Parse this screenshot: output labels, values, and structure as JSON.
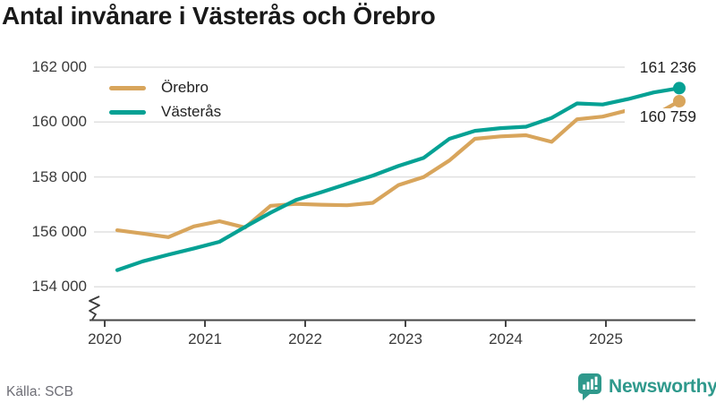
{
  "title": "Antal invånare i Västerås och Örebro",
  "source": "Källa: SCB",
  "brand": {
    "name": "Newsworthy",
    "icon": "bar-chart-speech-bubble",
    "color": "#2f998c"
  },
  "colors": {
    "title": "#191919",
    "tick": "#3a3a3a",
    "axis": "#454545",
    "grid": "#e0e0e0",
    "source": "#6e6e76",
    "brand": "#2f998c",
    "orebro": "#d8a55c",
    "vasteras": "#05a194"
  },
  "chart_data": {
    "type": "line",
    "title": "Antal invånare i Västerås och Örebro",
    "xlabel": "",
    "ylabel": "",
    "x_tick_labels": [
      "2020",
      "2021",
      "2022",
      "2023",
      "2024",
      "2025"
    ],
    "y_ticks": [
      162000,
      160000,
      158000,
      156000,
      154000
    ],
    "y_tick_labels": [
      "162 000",
      "160 000",
      "158 000",
      "156 000",
      "154 000"
    ],
    "ylim": [
      153400,
      162500
    ],
    "axis_break": true,
    "grid": "horizontal",
    "legend_position": "top-left",
    "periods": [
      "2020-Q1",
      "2020-Q2",
      "2020-Q3",
      "2020-Q4",
      "2021-Q1",
      "2021-Q2",
      "2021-Q3",
      "2021-Q4",
      "2022-Q1",
      "2022-Q2",
      "2022-Q3",
      "2022-Q4",
      "2023-Q1",
      "2023-Q2",
      "2023-Q3",
      "2023-Q4",
      "2024-Q1",
      "2024-Q2",
      "2024-Q3",
      "2024-Q4",
      "2025-Q1",
      "2025-Q2",
      "2025-Q3"
    ],
    "series": [
      {
        "name": "Örebro",
        "slug": "orebro",
        "color": "#d8a55c",
        "end_label": "160 759",
        "end_value": 160759,
        "values": [
          156060,
          155940,
          155810,
          156200,
          156390,
          156160,
          156950,
          157020,
          156990,
          156970,
          157060,
          157700,
          158000,
          158600,
          159390,
          159480,
          159520,
          159280,
          160100,
          160200,
          160430,
          160240,
          160759
        ]
      },
      {
        "name": "Västerås",
        "slug": "vasteras",
        "color": "#05a194",
        "end_label": "161 236",
        "end_value": 161236,
        "values": [
          154610,
          154930,
          155170,
          155400,
          155640,
          156180,
          156700,
          157165,
          157450,
          157750,
          158050,
          158400,
          158700,
          159390,
          159680,
          159780,
          159830,
          160150,
          160680,
          160640,
          160840,
          161080,
          161236
        ]
      }
    ]
  }
}
